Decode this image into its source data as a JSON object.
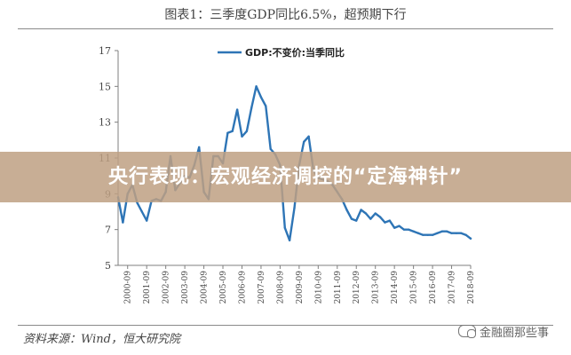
{
  "figure": {
    "title": "图表1：三季度GDP同比6.5%，超预期下行",
    "source": "资料来源：Wind，恒大研究院",
    "banner": "央行表现：宏观经济调控的“定海神针”",
    "watermark": "金融圈那些事"
  },
  "chart_data": {
    "type": "line",
    "title": "",
    "xlabel": "",
    "ylabel": "",
    "ylim": [
      5,
      17
    ],
    "yticks": [
      5,
      7,
      9,
      11,
      13,
      15,
      17
    ],
    "xticks": [
      "2000-09",
      "2001-09",
      "2002-09",
      "2003-09",
      "2004-09",
      "2005-09",
      "2006-09",
      "2007-09",
      "2008-09",
      "2009-09",
      "2010-09",
      "2011-09",
      "2012-09",
      "2013-09",
      "2014-09",
      "2015-09",
      "2016-09",
      "2017-09",
      "2018-09"
    ],
    "legend": "top",
    "grid": false,
    "series": [
      {
        "name": "GDP:不变价:当季同比",
        "color": "#2e75b6",
        "x": [
          "2000-03",
          "2000-06",
          "2000-09",
          "2000-12",
          "2001-03",
          "2001-06",
          "2001-09",
          "2001-12",
          "2002-03",
          "2002-06",
          "2002-09",
          "2002-12",
          "2003-03",
          "2003-06",
          "2003-09",
          "2003-12",
          "2004-03",
          "2004-06",
          "2004-09",
          "2004-12",
          "2005-03",
          "2005-06",
          "2005-09",
          "2005-12",
          "2006-03",
          "2006-06",
          "2006-09",
          "2006-12",
          "2007-03",
          "2007-06",
          "2007-09",
          "2007-12",
          "2008-03",
          "2008-06",
          "2008-09",
          "2008-12",
          "2009-03",
          "2009-06",
          "2009-09",
          "2009-12",
          "2010-03",
          "2010-06",
          "2010-09",
          "2010-12",
          "2011-03",
          "2011-06",
          "2011-09",
          "2011-12",
          "2012-03",
          "2012-06",
          "2012-09",
          "2012-12",
          "2013-03",
          "2013-06",
          "2013-09",
          "2013-12",
          "2014-03",
          "2014-06",
          "2014-09",
          "2014-12",
          "2015-03",
          "2015-06",
          "2015-09",
          "2015-12",
          "2016-03",
          "2016-06",
          "2016-09",
          "2016-12",
          "2017-03",
          "2017-06",
          "2017-09",
          "2017-12",
          "2018-03",
          "2018-06",
          "2018-09"
        ],
        "values": [
          8.8,
          7.4,
          9.0,
          9.5,
          8.5,
          8.0,
          7.5,
          8.6,
          8.7,
          8.6,
          9.1,
          11.1,
          9.2,
          9.6,
          10.0,
          9.9,
          10.6,
          11.6,
          9.1,
          8.7,
          11.1,
          11.1,
          10.7,
          12.4,
          12.5,
          13.7,
          12.2,
          12.5,
          13.8,
          15.0,
          14.4,
          13.9,
          11.5,
          11.2,
          10.6,
          7.1,
          6.4,
          8.2,
          10.6,
          11.9,
          12.2,
          10.3,
          9.9,
          9.8,
          9.7,
          9.5,
          9.1,
          8.7,
          8.1,
          7.6,
          7.5,
          8.1,
          7.9,
          7.6,
          7.9,
          7.7,
          7.4,
          7.5,
          7.1,
          7.2,
          7.0,
          7.0,
          6.9,
          6.8,
          6.7,
          6.7,
          6.7,
          6.8,
          6.9,
          6.9,
          6.8,
          6.8,
          6.8,
          6.7,
          6.5
        ]
      }
    ]
  }
}
